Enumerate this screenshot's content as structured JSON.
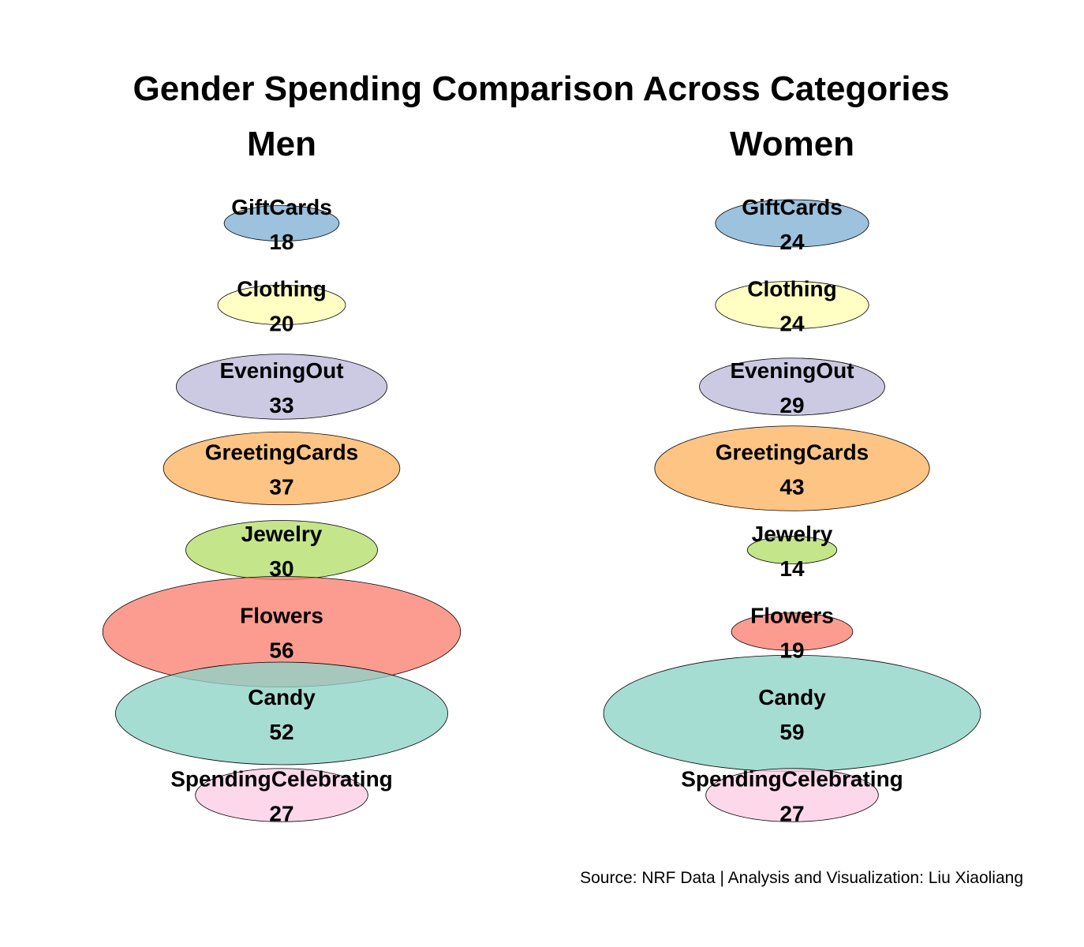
{
  "chart_data": {
    "type": "bubble",
    "title": "Gender Spending Comparison Across Categories",
    "caption": "Source: NRF Data | Analysis and Visualization: Liu Xiaoliang",
    "categories": [
      "GiftCards",
      "Clothing",
      "EveningOut",
      "GreetingCards",
      "Jewelry",
      "Flowers",
      "Candy",
      "SpendingCelebrating"
    ],
    "colors": [
      "#80B1D3",
      "#FFFFB3",
      "#BEBADA",
      "#FDB462",
      "#B3DE69",
      "#FB8072",
      "#8DD3C7",
      "#FCCDE5"
    ],
    "series": [
      {
        "name": "Men",
        "values": [
          18,
          20,
          33,
          37,
          30,
          56,
          52,
          27
        ]
      },
      {
        "name": "Women",
        "values": [
          24,
          24,
          29,
          43,
          14,
          19,
          59,
          27
        ]
      }
    ]
  }
}
